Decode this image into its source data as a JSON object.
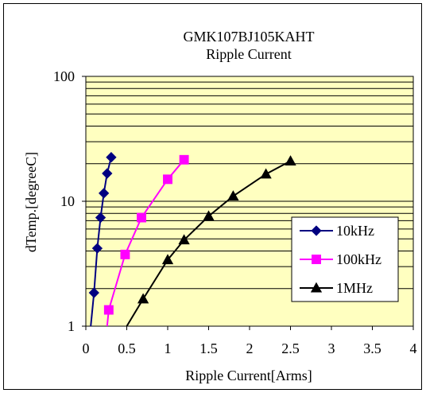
{
  "chart_data": {
    "type": "line",
    "title": "GMK107BJ105KAHT",
    "subtitle": "Ripple Current",
    "xlabel": "Ripple Current[Arms]",
    "ylabel": "dTemp.[degreeC]",
    "xlim": [
      0,
      4
    ],
    "ylim": [
      1,
      100
    ],
    "yscale": "log",
    "x_ticks": [
      "0",
      "0.5",
      "1",
      "1.5",
      "2",
      "2.5",
      "3",
      "3.5",
      "4"
    ],
    "y_ticks": [
      "1",
      "10",
      "100"
    ],
    "grid": true,
    "legend_position": "bottom-right",
    "plot_background": "#FFFFC0",
    "series": [
      {
        "name": "10kHz",
        "color": "#000080",
        "marker": "diamond",
        "x": [
          0.06,
          0.1,
          0.14,
          0.18,
          0.22,
          0.26,
          0.31
        ],
        "y": [
          1.0,
          1.85,
          4.2,
          7.4,
          11.6,
          16.7,
          22.5
        ]
      },
      {
        "name": "100kHz",
        "color": "#FF00FF",
        "marker": "square",
        "x": [
          0.26,
          0.28,
          0.48,
          0.68,
          1.0,
          1.2
        ],
        "y": [
          1.0,
          1.35,
          3.75,
          7.4,
          15.0,
          21.5
        ]
      },
      {
        "name": "1MHz",
        "color": "#000000",
        "marker": "triangle",
        "x": [
          0.5,
          0.7,
          1.0,
          1.2,
          1.5,
          1.8,
          2.2,
          2.5
        ],
        "y": [
          1.0,
          1.65,
          3.4,
          4.9,
          7.6,
          11.0,
          16.5,
          21.0
        ]
      }
    ]
  }
}
